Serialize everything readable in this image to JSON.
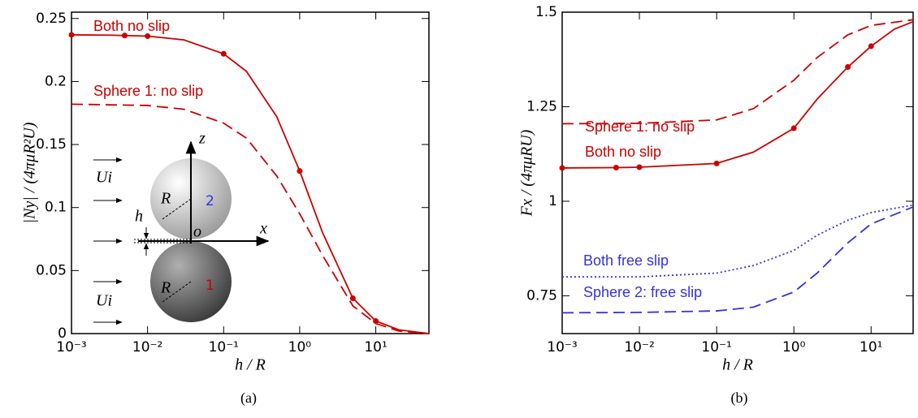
{
  "chart_data": [
    {
      "type": "line",
      "caption": "(a)",
      "x_label": "h / R",
      "y_label": "|Ny| / (4πμR²U)",
      "xscale": "log",
      "xlim": [
        0.001,
        50
      ],
      "ylim": [
        0,
        0.255
      ],
      "xticks": [
        {
          "value": 0.001,
          "label": "10⁻³"
        },
        {
          "value": 0.01,
          "label": "10⁻²"
        },
        {
          "value": 0.1,
          "label": "10⁻¹"
        },
        {
          "value": 1,
          "label": "10⁰"
        },
        {
          "value": 10,
          "label": "10¹"
        }
      ],
      "yticks": [
        0,
        0.05,
        0.1,
        0.15,
        0.2,
        0.25
      ],
      "series": [
        {
          "name": "Both no slip",
          "color": "#cc0000",
          "dash": "solid",
          "x": [
            0.001,
            0.003,
            0.01,
            0.03,
            0.1,
            0.2,
            0.5,
            1,
            2,
            5,
            10,
            20,
            50
          ],
          "values": [
            0.237,
            0.2368,
            0.236,
            0.233,
            0.222,
            0.208,
            0.172,
            0.129,
            0.08,
            0.028,
            0.01,
            0.003,
            0
          ],
          "points": {
            "x": [
              0.001,
              0.005,
              0.01,
              0.1,
              1,
              5,
              10
            ],
            "values": [
              0.237,
              0.2365,
              0.236,
              0.222,
              0.129,
              0.028,
              0.01
            ]
          }
        },
        {
          "name": "Sphere 1: no slip",
          "color": "#cc0000",
          "dash": "dashed",
          "x": [
            0.001,
            0.01,
            0.03,
            0.1,
            0.2,
            0.5,
            1,
            2,
            5,
            10,
            20,
            50
          ],
          "values": [
            0.182,
            0.181,
            0.178,
            0.167,
            0.155,
            0.125,
            0.095,
            0.062,
            0.022,
            0.008,
            0.002,
            0
          ]
        }
      ],
      "inset": {
        "flow": "Ui",
        "z_axis": "z",
        "x_axis": "x",
        "radius": "R",
        "sphere_top": "2",
        "sphere_bottom": "1",
        "gap": "h",
        "origin": "o"
      }
    },
    {
      "type": "line",
      "caption": "(b)",
      "x_label": "h / R",
      "y_label": "Fx / (4πμRU)",
      "xscale": "log",
      "xlim": [
        0.001,
        35
      ],
      "ylim": [
        0.65,
        1.5
      ],
      "xticks": [
        {
          "value": 0.001,
          "label": "10⁻³"
        },
        {
          "value": 0.01,
          "label": "10⁻²"
        },
        {
          "value": 0.1,
          "label": "10⁻¹"
        },
        {
          "value": 1,
          "label": "10⁰"
        },
        {
          "value": 10,
          "label": "10¹"
        }
      ],
      "yticks": [
        0.75,
        1,
        1.25,
        1.5
      ],
      "series": [
        {
          "name": "Sphere 1: no slip",
          "color": "#cc0000",
          "dash": "dashed",
          "x": [
            0.001,
            0.01,
            0.1,
            0.3,
            1,
            2,
            5,
            10,
            35
          ],
          "values": [
            1.205,
            1.206,
            1.215,
            1.245,
            1.32,
            1.38,
            1.44,
            1.465,
            1.48
          ]
        },
        {
          "name": "Both no slip",
          "color": "#cc0000",
          "dash": "solid",
          "x": [
            0.001,
            0.005,
            0.01,
            0.1,
            0.3,
            1,
            2,
            5,
            10,
            20,
            35
          ],
          "values": [
            1.088,
            1.089,
            1.09,
            1.1,
            1.13,
            1.193,
            1.27,
            1.355,
            1.41,
            1.455,
            1.475
          ],
          "points": {
            "x": [
              0.001,
              0.005,
              0.01,
              0.1,
              1,
              5,
              10
            ],
            "values": [
              1.088,
              1.089,
              1.09,
              1.1,
              1.193,
              1.355,
              1.41
            ]
          }
        },
        {
          "name": "Both free slip",
          "color": "#3333dd",
          "dash": "dotted",
          "x": [
            0.001,
            0.01,
            0.1,
            0.3,
            1,
            2,
            5,
            10,
            35
          ],
          "values": [
            0.8,
            0.8,
            0.81,
            0.83,
            0.87,
            0.91,
            0.95,
            0.97,
            0.99
          ]
        },
        {
          "name": "Sphere 2: free slip",
          "color": "#3333dd",
          "dash": "dashed",
          "x": [
            0.001,
            0.01,
            0.1,
            0.3,
            1,
            2,
            5,
            10,
            35
          ],
          "values": [
            0.705,
            0.706,
            0.71,
            0.72,
            0.76,
            0.81,
            0.89,
            0.94,
            0.985
          ]
        }
      ]
    }
  ]
}
